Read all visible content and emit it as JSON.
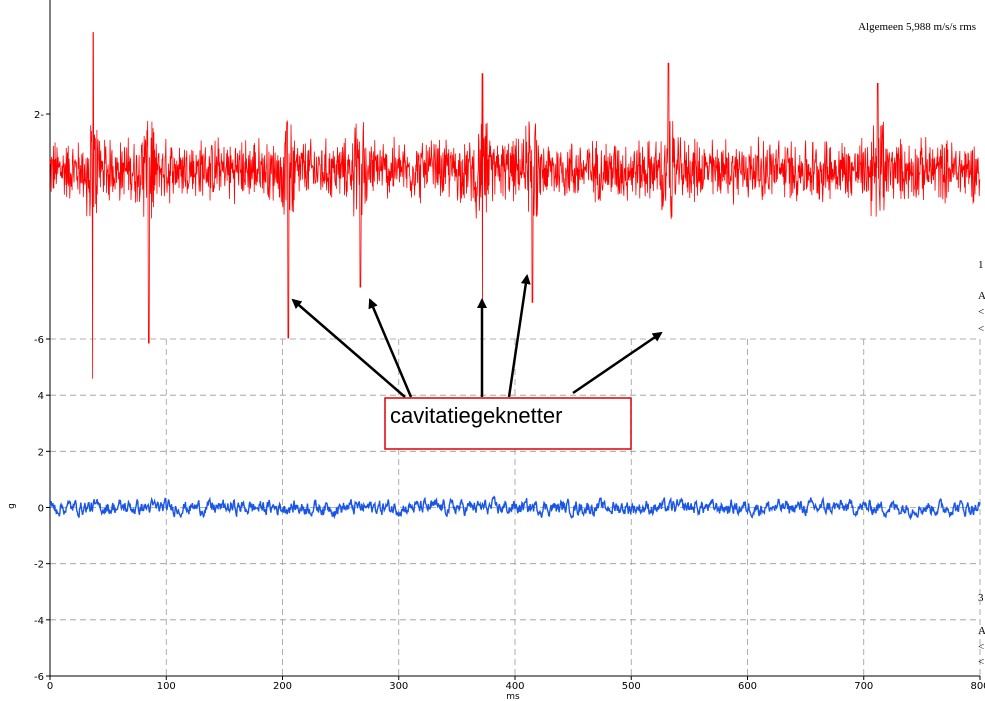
{
  "chart_data": {
    "type": "line",
    "overall_value": "Algemeen 5,988 m/s/s rms",
    "annotation": "cavitatiegeknetter",
    "xlabel": "ms",
    "ylabel": "g",
    "xlim": [
      0,
      800
    ],
    "x_ticks": [
      "0",
      "100",
      "200",
      "300",
      "400",
      "500",
      "600",
      "700",
      "800"
    ],
    "lower_plot": {
      "ylim": [
        -6,
        6
      ],
      "y_ticks": [
        "-6",
        "-4",
        "-2",
        "0",
        "2",
        "4",
        "6"
      ],
      "grid": "dashed"
    },
    "upper_plot": {
      "y_ticks": [
        "2"
      ]
    },
    "series": [
      {
        "color": "#ff0000",
        "panel": "upper",
        "baseline": 1.55,
        "noise_amplitude": 0.22,
        "spikes": [
          {
            "x_ms": 37,
            "max": 2.9,
            "min": -0.5
          },
          {
            "x_ms": 85,
            "min": -0.15
          },
          {
            "x_ms": 205,
            "max": 2.55,
            "min": -0.1
          },
          {
            "x_ms": 267,
            "max": 2.75,
            "min": 0.4
          },
          {
            "x_ms": 372,
            "max": 2.5,
            "min": 0.05
          },
          {
            "x_ms": 415,
            "min": 0.25
          },
          {
            "x_ms": 532,
            "max": 2.6,
            "min": -0.6
          },
          {
            "x_ms": 712,
            "max": 2.4
          }
        ]
      },
      {
        "color": "#1a56e6",
        "panel": "lower",
        "baseline": 0,
        "noise_amplitude": 0.25
      }
    ],
    "right_edge_text": [
      "1",
      "A",
      "<",
      "<",
      "3",
      "A",
      "<",
      "<"
    ]
  }
}
